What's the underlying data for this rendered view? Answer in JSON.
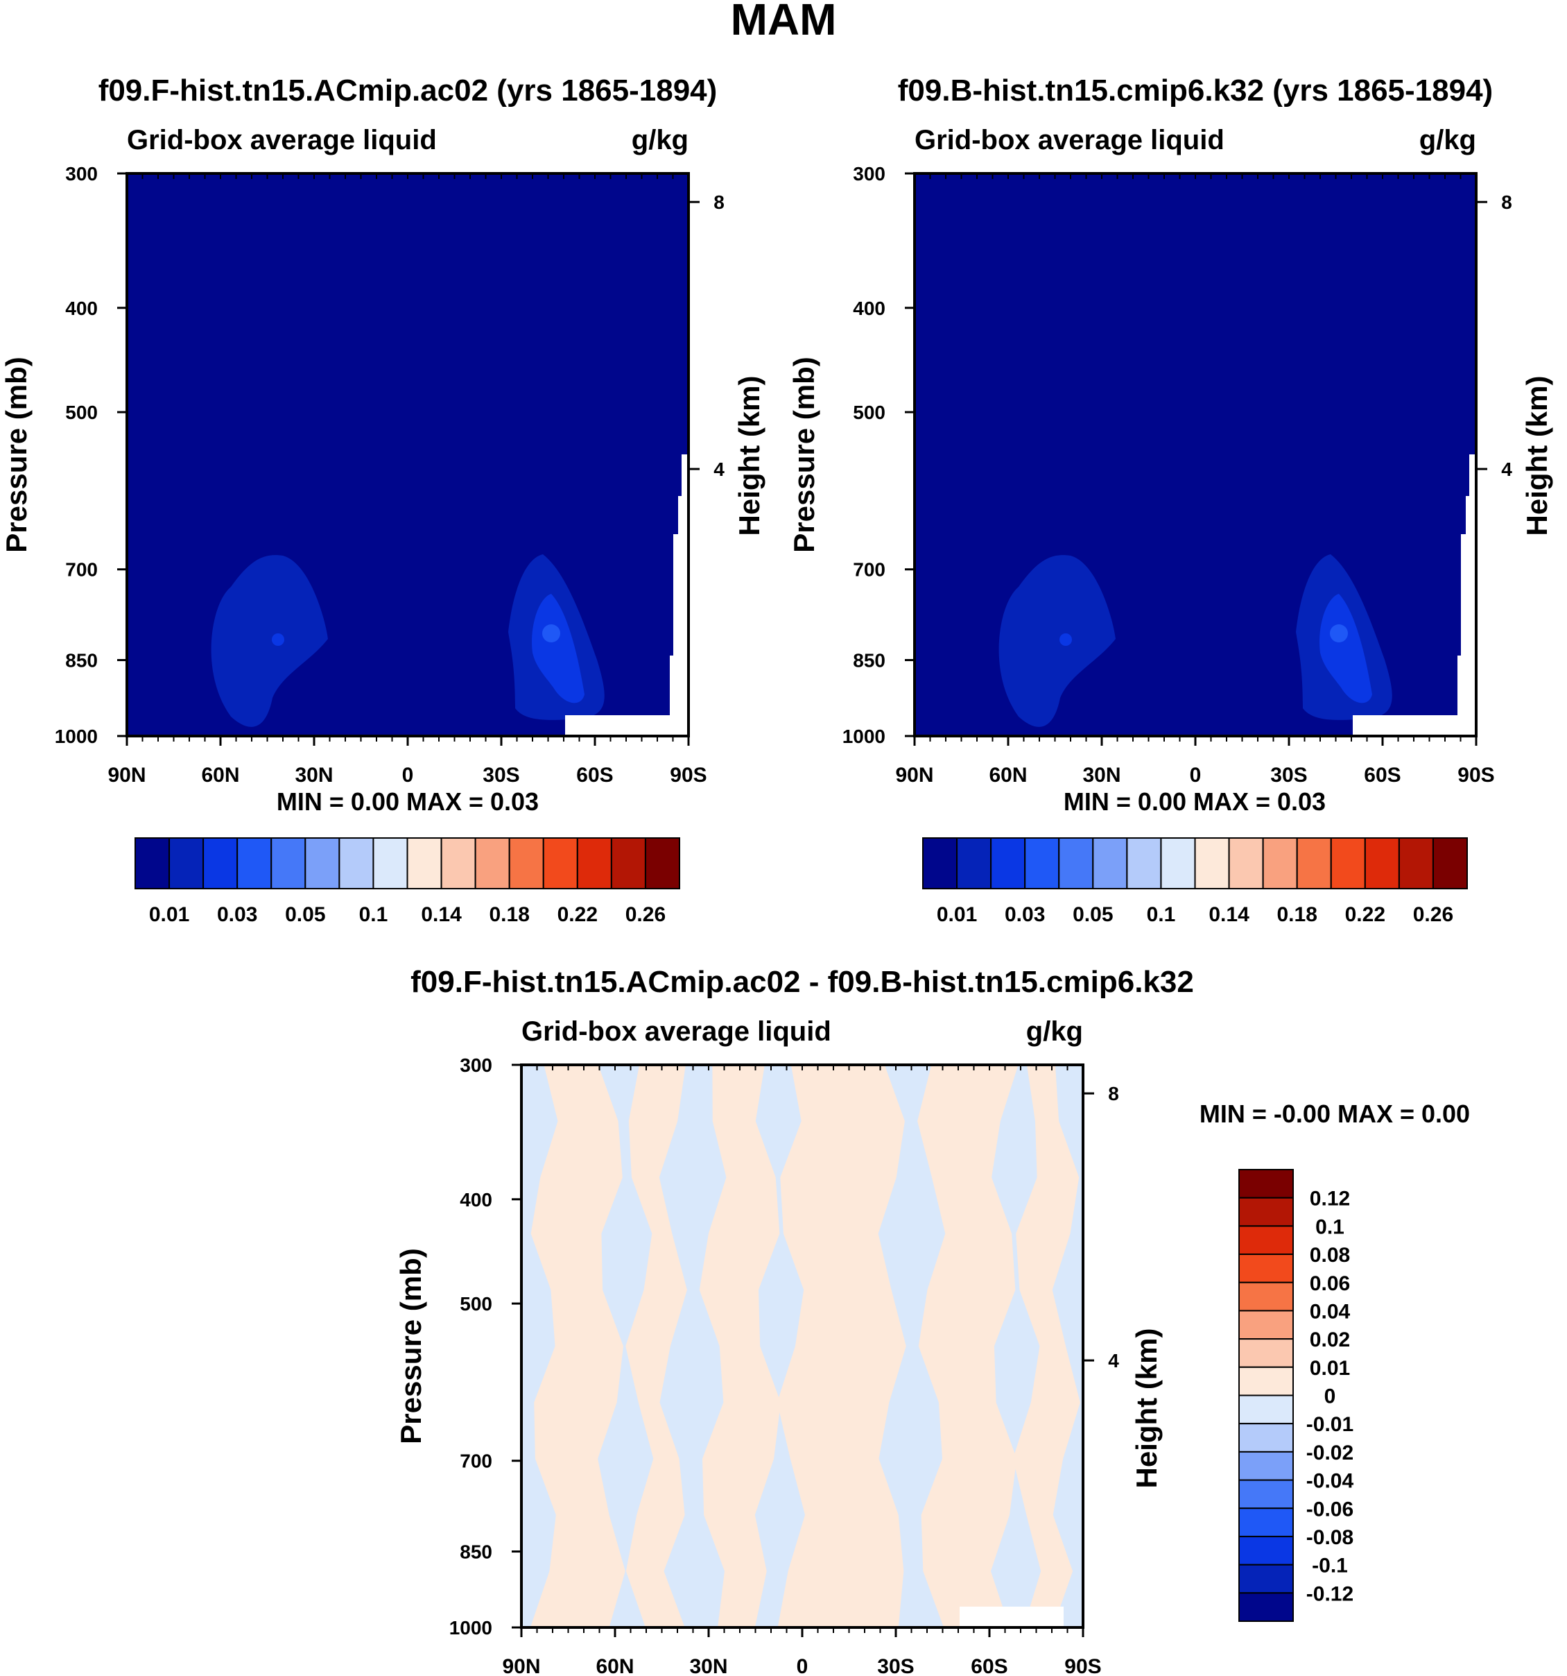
{
  "figure_title": "MAM",
  "colors": {
    "background_field": "#00068c",
    "blob_outer": "#0523b8",
    "blob_mid": "#0a37e4",
    "blob_core": "#1f58f6",
    "missing": "#ffffff",
    "diff_pos": "#fde9da",
    "diff_neg": "#d9e8fb"
  },
  "chart_data": [
    {
      "type": "contour",
      "title": "f09.F-hist.tn15.ACmip.ac02 (yrs 1865-1894)",
      "left_label": "Grid-box average liquid",
      "right_label": "g/kg",
      "ylabel": "Pressure (mb)",
      "y2label": "Height (km)",
      "x_ticks": [
        "90N",
        "60N",
        "30N",
        "0",
        "30S",
        "60S",
        "90S"
      ],
      "y_ticks": [
        300,
        400,
        500,
        700,
        850,
        1000
      ],
      "y2_ticks": [
        8,
        4
      ],
      "ylim": [
        1000,
        300
      ],
      "minmax_text": "MIN =   0.00  MAX =   0.03",
      "min": 0.0,
      "max": 0.03,
      "colorbar": {
        "orientation": "horizontal",
        "colors": [
          "#00068c",
          "#0523b8",
          "#0a37e4",
          "#1f58f6",
          "#4578f8",
          "#7ba0f9",
          "#b4cbfa",
          "#dbe9fb",
          "#fde9da",
          "#fbc8b0",
          "#f9a17f",
          "#f67445",
          "#f24a1c",
          "#de2a0a",
          "#b31605",
          "#7a0000"
        ],
        "labels": [
          "0.01",
          "0.03",
          "0.05",
          "0.1",
          "0.14",
          "0.18",
          "0.22",
          "0.26"
        ]
      }
    },
    {
      "type": "contour",
      "title": "f09.B-hist.tn15.cmip6.k32 (yrs 1865-1894)",
      "left_label": "Grid-box average liquid",
      "right_label": "g/kg",
      "ylabel": "Pressure (mb)",
      "y2label": "Height (km)",
      "x_ticks": [
        "90N",
        "60N",
        "30N",
        "0",
        "30S",
        "60S",
        "90S"
      ],
      "y_ticks": [
        300,
        400,
        500,
        700,
        850,
        1000
      ],
      "y2_ticks": [
        8,
        4
      ],
      "ylim": [
        1000,
        300
      ],
      "minmax_text": "MIN =   0.00  MAX =   0.03",
      "min": 0.0,
      "max": 0.03,
      "colorbar": {
        "orientation": "horizontal",
        "colors": [
          "#00068c",
          "#0523b8",
          "#0a37e4",
          "#1f58f6",
          "#4578f8",
          "#7ba0f9",
          "#b4cbfa",
          "#dbe9fb",
          "#fde9da",
          "#fbc8b0",
          "#f9a17f",
          "#f67445",
          "#f24a1c",
          "#de2a0a",
          "#b31605",
          "#7a0000"
        ],
        "labels": [
          "0.01",
          "0.03",
          "0.05",
          "0.1",
          "0.14",
          "0.18",
          "0.22",
          "0.26"
        ]
      }
    },
    {
      "type": "contour",
      "title": "f09.F-hist.tn15.ACmip.ac02 - f09.B-hist.tn15.cmip6.k32",
      "left_label": "Grid-box average liquid",
      "right_label": "g/kg",
      "ylabel": "Pressure (mb)",
      "y2label": "Height (km)",
      "x_ticks": [
        "90N",
        "60N",
        "30N",
        "0",
        "30S",
        "60S",
        "90S"
      ],
      "y_ticks": [
        300,
        400,
        500,
        700,
        850,
        1000
      ],
      "y2_ticks": [
        8,
        4
      ],
      "ylim": [
        1000,
        300
      ],
      "minmax_text": "MIN =  -0.00  MAX =   0.00",
      "min": -0.0,
      "max": 0.0,
      "colorbar": {
        "orientation": "vertical",
        "colors": [
          "#7a0000",
          "#b31605",
          "#de2a0a",
          "#f24a1c",
          "#f67445",
          "#f9a17f",
          "#fbc8b0",
          "#fde9da",
          "#dbe9fb",
          "#b4cbfa",
          "#7ba0f9",
          "#4578f8",
          "#1f58f6",
          "#0a37e4",
          "#0523b8",
          "#00068c"
        ],
        "labels": [
          "0.12",
          "0.1",
          "0.08",
          "0.06",
          "0.04",
          "0.02",
          "0.01",
          "0",
          "-0.01",
          "-0.02",
          "-0.04",
          "-0.06",
          "-0.08",
          "-0.1",
          "-0.12"
        ]
      }
    }
  ]
}
